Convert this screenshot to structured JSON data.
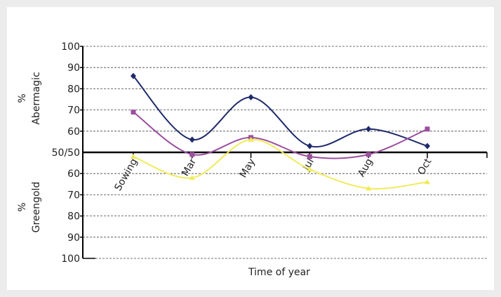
{
  "chart_data": {
    "type": "line",
    "x_label": "Time of year",
    "y_label_top": [
      "%",
      "Abermagic"
    ],
    "y_label_bottom": [
      "%",
      "Greengold"
    ],
    "categories": [
      "Sowing",
      "Mar",
      "May",
      "Jul",
      "Aug",
      "Oct"
    ],
    "series": [
      {
        "color": "#1f2a6b",
        "marker": "diamond",
        "values": [
          86,
          56,
          76,
          53,
          61,
          53
        ]
      },
      {
        "color": "#9b4f9e",
        "marker": "square",
        "values": [
          69,
          49,
          57,
          48,
          49,
          61
        ]
      },
      {
        "color": "#f0eb5a",
        "marker": "triangle",
        "values": [
          48,
          38,
          56,
          42,
          33,
          36
        ]
      }
    ],
    "ylim": [
      0,
      100
    ],
    "yticks": [
      100,
      90,
      80,
      70,
      60,
      {
        "value": 50,
        "label": "50/50"
      },
      {
        "value": 40,
        "label": "60"
      },
      {
        "value": 30,
        "label": "70"
      },
      {
        "value": 20,
        "label": "80"
      },
      {
        "value": 10,
        "label": "90"
      },
      {
        "value": 0,
        "label": "100"
      }
    ],
    "grid": true
  }
}
